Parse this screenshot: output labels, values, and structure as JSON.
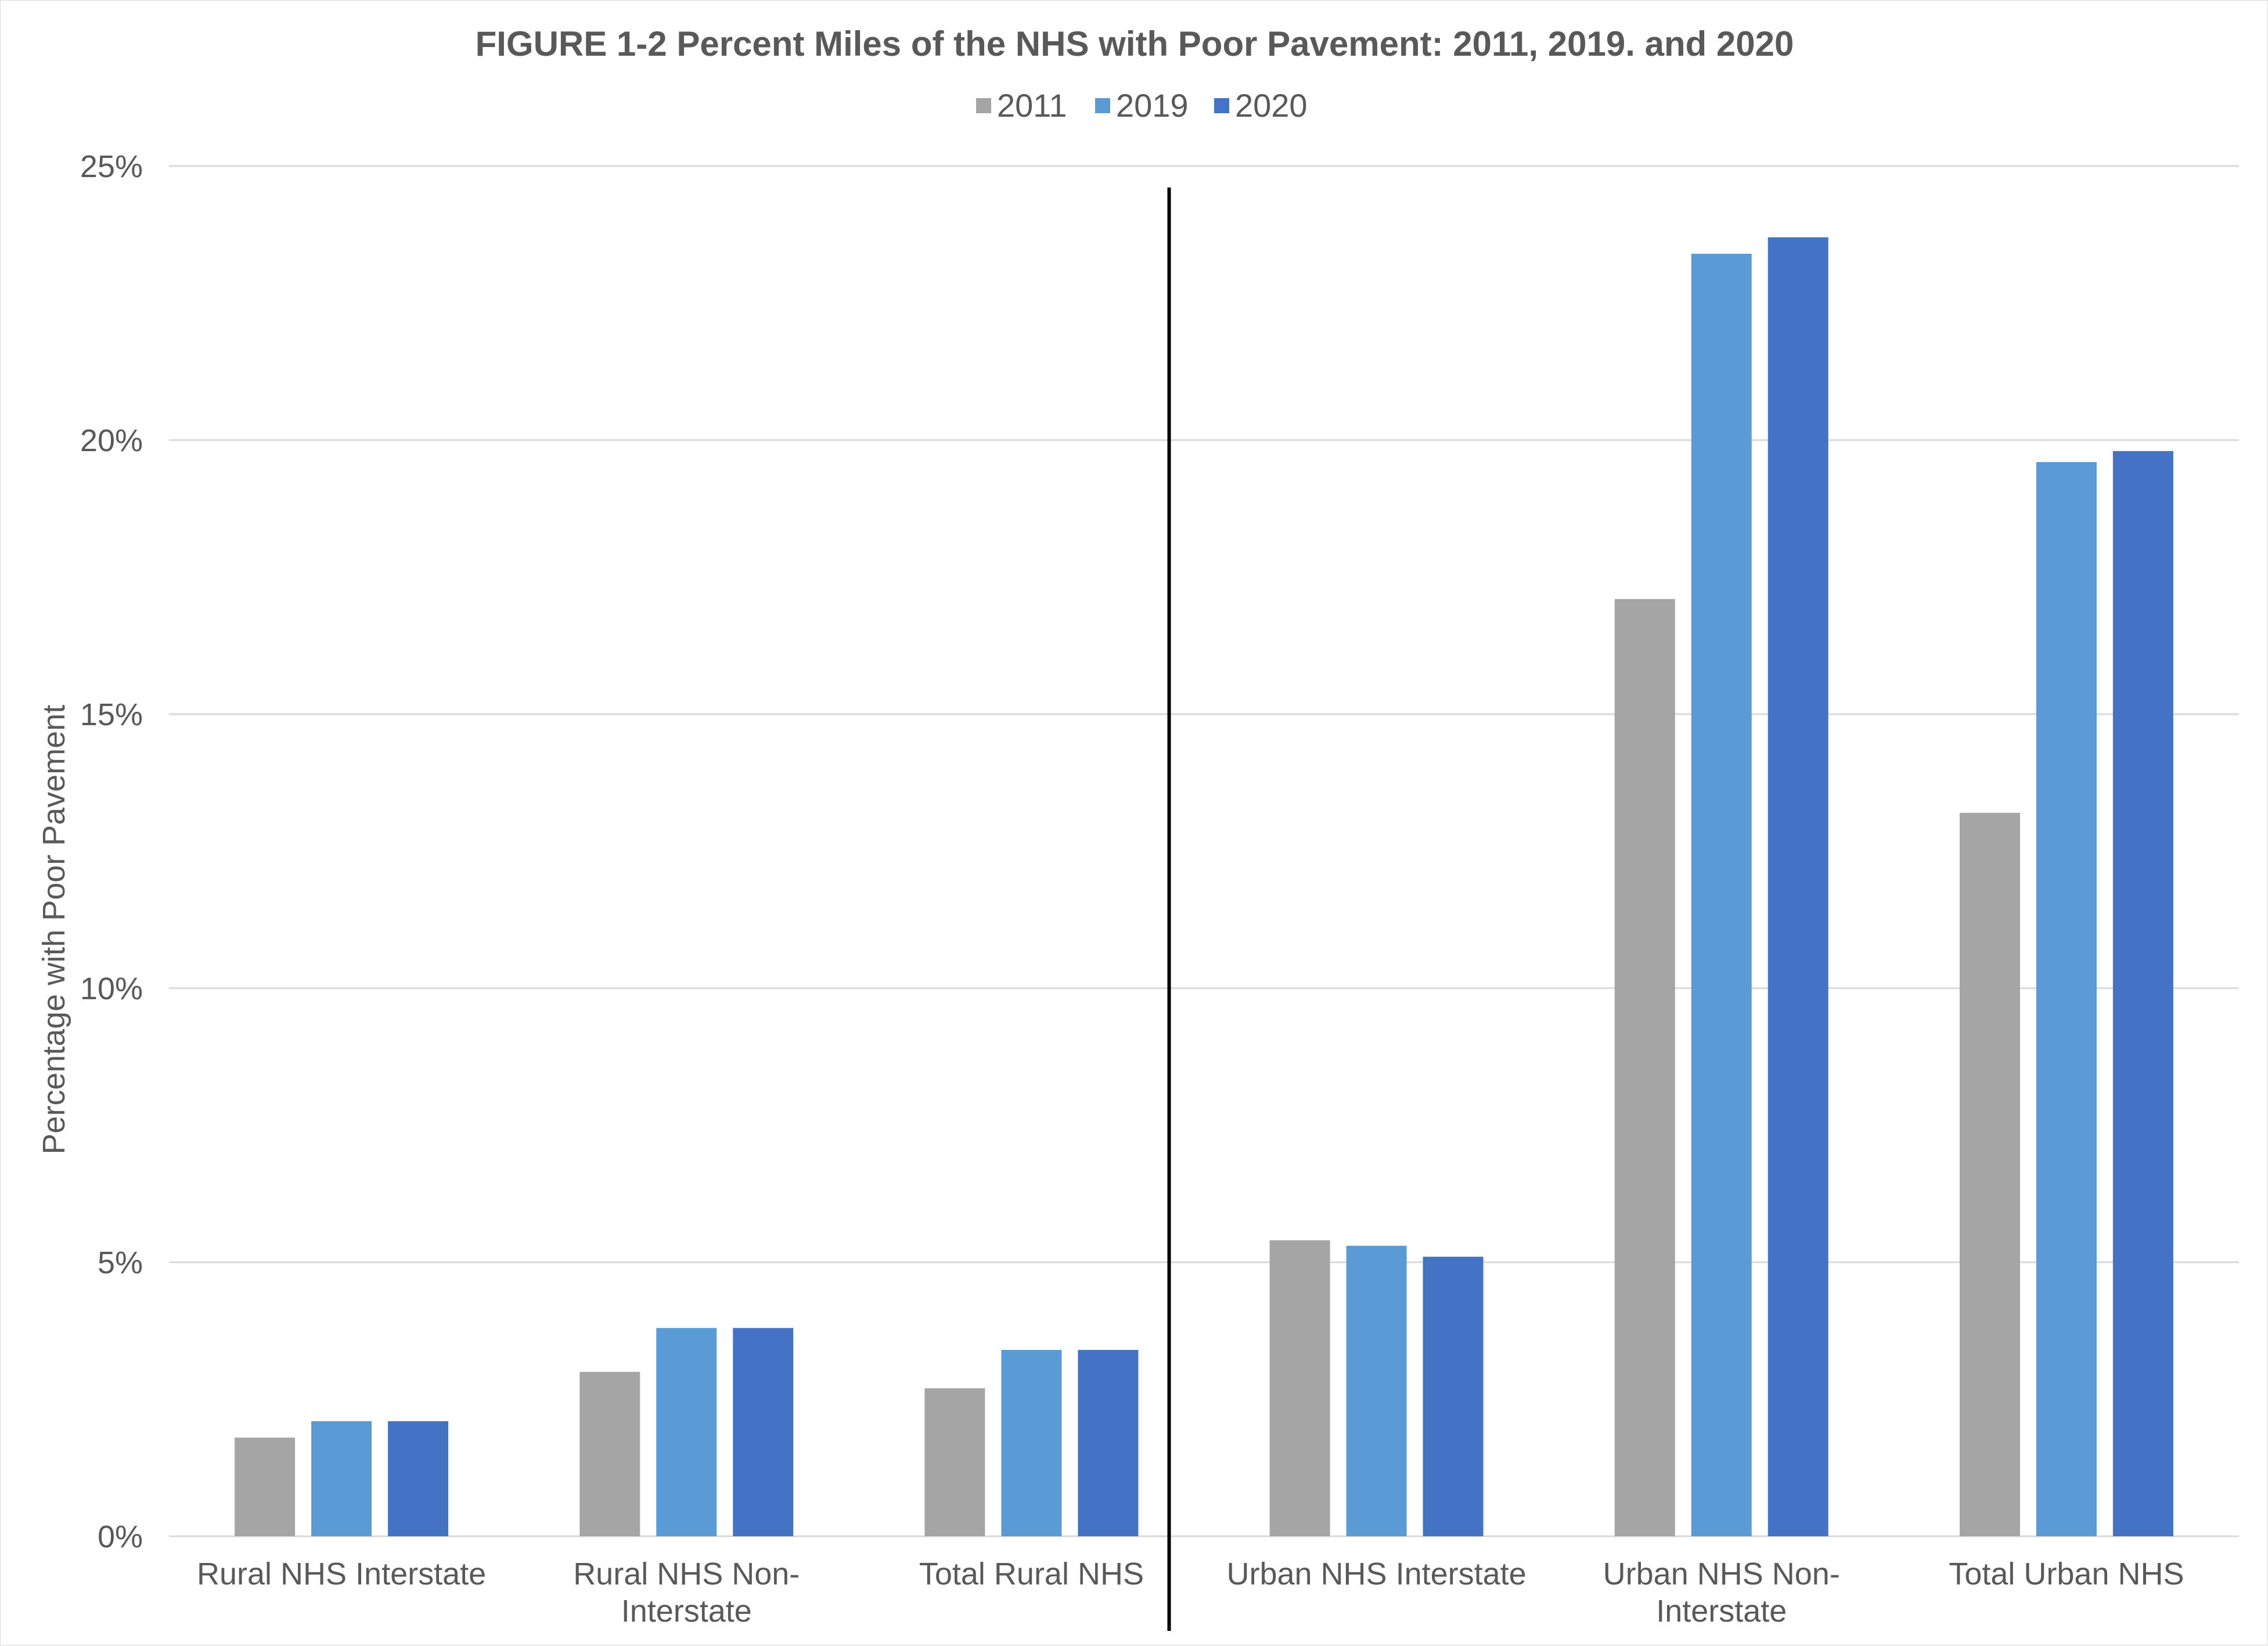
{
  "chart_data": {
    "type": "bar",
    "title": "FIGURE 1-2 Percent Miles of the NHS with Poor Pavement: 2011, 2019. and 2020",
    "xlabel": "",
    "ylabel": "Percentage with Poor Pavement",
    "ylim": [
      0,
      25
    ],
    "yticks": [
      "0%",
      "5%",
      "10%",
      "15%",
      "20%",
      "25%"
    ],
    "ytick_values": [
      0,
      5,
      10,
      15,
      20,
      25
    ],
    "grid": true,
    "legend_position": "top-center",
    "categories": [
      [
        "Rural NHS Interstate"
      ],
      [
        "Rural NHS Non-",
        "Interstate"
      ],
      [
        "Total Rural NHS"
      ],
      [
        "Urban NHS Interstate"
      ],
      [
        "Urban NHS Non-",
        "Interstate"
      ],
      [
        "Total Urban NHS"
      ]
    ],
    "series": [
      {
        "name": "2011",
        "color": "#a5a5a5",
        "values": [
          1.8,
          3.0,
          2.7,
          5.4,
          17.1,
          13.2
        ]
      },
      {
        "name": "2019",
        "color": "#5b9bd5",
        "values": [
          2.1,
          3.8,
          3.4,
          5.3,
          23.4,
          19.6
        ]
      },
      {
        "name": "2020",
        "color": "#4472c4",
        "values": [
          2.1,
          3.8,
          3.4,
          5.1,
          23.7,
          19.8
        ]
      }
    ],
    "annotations": [
      "vertical divider line between rural and urban categories"
    ]
  }
}
